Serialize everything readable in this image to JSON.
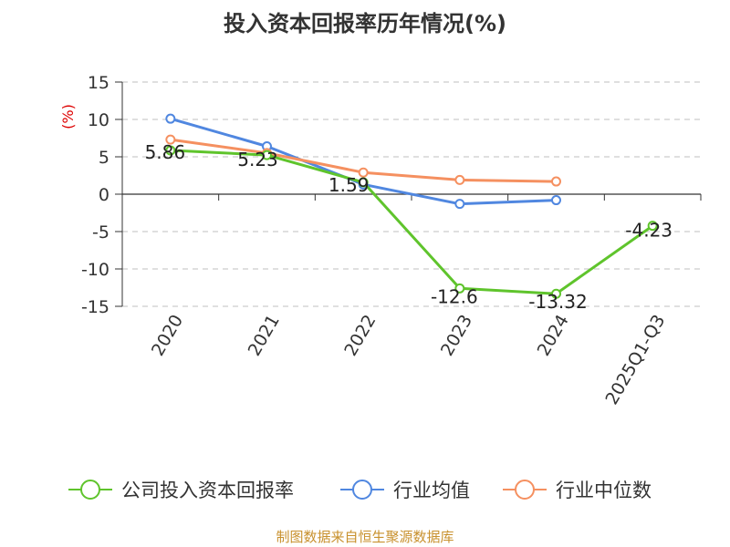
{
  "chart_data": {
    "type": "line",
    "title": "投入资本回报率历年情况(%)",
    "ylabel": "(%)",
    "categories": [
      "2020",
      "2021",
      "2022",
      "2023",
      "2024",
      "2025Q1-Q3"
    ],
    "ylim": [
      -15,
      15
    ],
    "yticks": [
      15,
      10,
      5,
      0,
      -5,
      -10,
      -15
    ],
    "grid": true,
    "legend_position": "bottom",
    "series": [
      {
        "name": "公司投入资本回报率",
        "color": "#5fc42c",
        "values": [
          5.86,
          5.23,
          1.59,
          -12.6,
          -13.32,
          -4.23
        ],
        "labels": [
          "5.86",
          "5.23",
          "1.59",
          "-12.6",
          "-13.32",
          "-4.23"
        ]
      },
      {
        "name": "行业均值",
        "color": "#5087e0",
        "values": [
          10.1,
          6.4,
          1.3,
          -1.3,
          -0.8,
          null
        ]
      },
      {
        "name": "行业中位数",
        "color": "#f59060",
        "values": [
          7.3,
          5.5,
          2.9,
          1.9,
          1.7,
          null
        ]
      }
    ]
  },
  "source": "制图数据来自恒生聚源数据库"
}
